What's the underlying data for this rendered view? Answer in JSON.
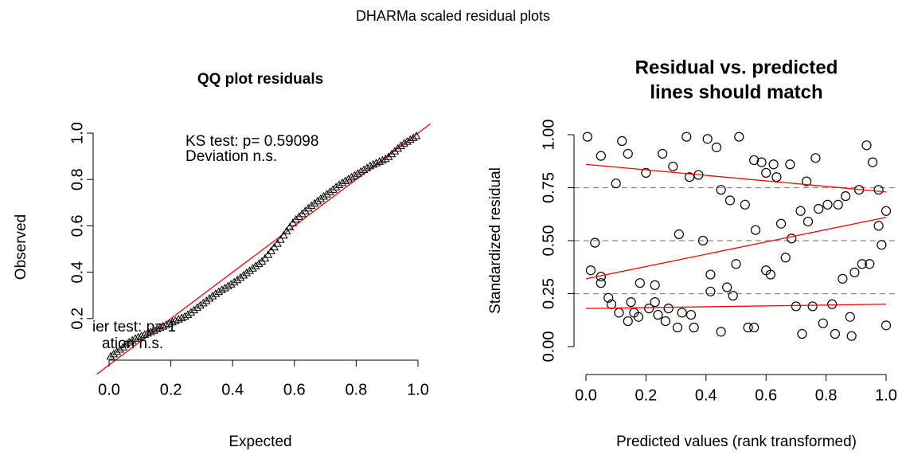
{
  "title": "DHARMa scaled residual plots",
  "chart_data": [
    {
      "type": "qq",
      "title": "QQ plot residuals",
      "x_label": "Expected",
      "y_label": "Observed",
      "marker": "triangle",
      "color": "#000000",
      "x": [
        0.005,
        0.015,
        0.025,
        0.035,
        0.045,
        0.055,
        0.065,
        0.075,
        0.085,
        0.095,
        0.105,
        0.115,
        0.125,
        0.135,
        0.145,
        0.155,
        0.165,
        0.175,
        0.185,
        0.195,
        0.205,
        0.215,
        0.225,
        0.235,
        0.245,
        0.255,
        0.265,
        0.275,
        0.285,
        0.295,
        0.305,
        0.315,
        0.325,
        0.335,
        0.345,
        0.355,
        0.365,
        0.375,
        0.385,
        0.395,
        0.405,
        0.415,
        0.425,
        0.435,
        0.445,
        0.455,
        0.465,
        0.475,
        0.485,
        0.495,
        0.505,
        0.515,
        0.525,
        0.535,
        0.545,
        0.555,
        0.565,
        0.575,
        0.585,
        0.595,
        0.605,
        0.615,
        0.625,
        0.635,
        0.645,
        0.655,
        0.665,
        0.675,
        0.685,
        0.695,
        0.705,
        0.715,
        0.725,
        0.735,
        0.745,
        0.755,
        0.765,
        0.775,
        0.785,
        0.795,
        0.805,
        0.815,
        0.825,
        0.835,
        0.845,
        0.855,
        0.865,
        0.875,
        0.885,
        0.895,
        0.905,
        0.915,
        0.925,
        0.935,
        0.945,
        0.955,
        0.965,
        0.975,
        0.985,
        0.995
      ],
      "values": [
        0.035,
        0.045,
        0.055,
        0.065,
        0.075,
        0.088,
        0.096,
        0.104,
        0.112,
        0.118,
        0.123,
        0.129,
        0.135,
        0.141,
        0.147,
        0.153,
        0.159,
        0.165,
        0.171,
        0.177,
        0.183,
        0.189,
        0.195,
        0.201,
        0.207,
        0.215,
        0.225,
        0.235,
        0.245,
        0.255,
        0.265,
        0.275,
        0.285,
        0.295,
        0.305,
        0.314,
        0.322,
        0.33,
        0.338,
        0.346,
        0.355,
        0.365,
        0.375,
        0.385,
        0.395,
        0.405,
        0.415,
        0.425,
        0.435,
        0.445,
        0.458,
        0.474,
        0.49,
        0.506,
        0.522,
        0.539,
        0.557,
        0.575,
        0.593,
        0.611,
        0.626,
        0.638,
        0.65,
        0.662,
        0.674,
        0.685,
        0.695,
        0.705,
        0.715,
        0.725,
        0.735,
        0.745,
        0.755,
        0.765,
        0.775,
        0.784,
        0.792,
        0.8,
        0.808,
        0.816,
        0.824,
        0.832,
        0.84,
        0.848,
        0.856,
        0.863,
        0.869,
        0.875,
        0.881,
        0.887,
        0.896,
        0.908,
        0.92,
        0.932,
        0.944,
        0.954,
        0.962,
        0.97,
        0.978,
        0.986
      ],
      "reference_line": {
        "intercept": 0,
        "slope": 1,
        "color": "#ff0000"
      },
      "xlim": [
        -0.04,
        1.04
      ],
      "ylim": [
        -0.04,
        1.04
      ],
      "xticks": [
        {
          "value": 0,
          "label": "0.0"
        },
        0.2,
        0.4,
        0.6,
        0.8,
        {
          "value": 1,
          "label": "1.0"
        }
      ],
      "yticks": [
        0.2,
        0.4,
        0.6,
        0.8,
        {
          "value": 1,
          "label": "1.0"
        }
      ],
      "annotations": [
        "KS test: p= 0.59098",
        "Deviation  n.s.",
        "ier test: p= 1",
        "ation  n.s."
      ]
    },
    {
      "type": "scatter",
      "title": [
        "Residual vs. predicted",
        "lines should match"
      ],
      "x_label": "Predicted values (rank transformed)",
      "y_label": "Standardized residual",
      "marker": "circle",
      "color": "#000000",
      "x": [
        0.005,
        0.03,
        0.016,
        0.05,
        0.05,
        0.05,
        0.075,
        0.085,
        0.1,
        0.11,
        0.12,
        0.14,
        0.14,
        0.15,
        0.16,
        0.175,
        0.18,
        0.2,
        0.21,
        0.23,
        0.23,
        0.24,
        0.255,
        0.265,
        0.275,
        0.29,
        0.305,
        0.31,
        0.32,
        0.335,
        0.345,
        0.35,
        0.36,
        0.375,
        0.39,
        0.405,
        0.415,
        0.415,
        0.435,
        0.45,
        0.45,
        0.47,
        0.48,
        0.49,
        0.5,
        0.51,
        0.53,
        0.54,
        0.56,
        0.56,
        0.565,
        0.585,
        0.6,
        0.6,
        0.615,
        0.625,
        0.635,
        0.65,
        0.665,
        0.68,
        0.685,
        0.7,
        0.715,
        0.72,
        0.735,
        0.74,
        0.755,
        0.765,
        0.775,
        0.79,
        0.805,
        0.82,
        0.83,
        0.84,
        0.855,
        0.865,
        0.88,
        0.885,
        0.895,
        0.91,
        0.92,
        0.935,
        0.945,
        0.955,
        0.975,
        0.975,
        0.985,
        1.0,
        1.0
      ],
      "values": [
        0.99,
        0.49,
        0.36,
        0.9,
        0.33,
        0.3,
        0.23,
        0.2,
        0.77,
        0.16,
        0.97,
        0.12,
        0.91,
        0.21,
        0.16,
        0.14,
        0.3,
        0.82,
        0.18,
        0.29,
        0.21,
        0.15,
        0.91,
        0.12,
        0.18,
        0.85,
        0.09,
        0.53,
        0.16,
        0.99,
        0.8,
        0.15,
        0.09,
        0.81,
        0.5,
        0.98,
        0.26,
        0.34,
        0.94,
        0.74,
        0.07,
        0.28,
        0.69,
        0.24,
        0.39,
        0.99,
        0.67,
        0.09,
        0.88,
        0.09,
        0.55,
        0.87,
        0.82,
        0.36,
        0.34,
        0.86,
        0.8,
        0.58,
        0.42,
        0.86,
        0.51,
        0.19,
        0.64,
        0.06,
        0.78,
        0.59,
        0.19,
        0.89,
        0.65,
        0.11,
        0.67,
        0.2,
        0.06,
        0.67,
        0.32,
        0.71,
        0.14,
        0.05,
        0.35,
        0.74,
        0.39,
        0.95,
        0.39,
        0.87,
        0.74,
        0.57,
        0.48,
        0.1,
        0.64
      ],
      "quantile_lines": [
        {
          "quantile": 0.25,
          "fit_x": [
            0,
            1
          ],
          "values": [
            0.18,
            0.2
          ],
          "color": "#ff0000"
        },
        {
          "quantile": 0.5,
          "fit_x": [
            0,
            1
          ],
          "values": [
            0.32,
            0.61
          ],
          "color": "#ff0000"
        },
        {
          "quantile": 0.75,
          "fit_x": [
            0,
            1
          ],
          "values": [
            0.86,
            0.73
          ],
          "color": "#ff0000"
        }
      ],
      "dashed_color": "#888888",
      "xlim": [
        -0.04,
        1.04
      ],
      "ylim": [
        -0.04,
        1.04
      ],
      "xticks": [
        {
          "value": 0,
          "label": "0.0"
        },
        0.2,
        0.4,
        0.6,
        0.8,
        {
          "value": 1,
          "label": "1.0"
        }
      ],
      "yticks": [
        {
          "value": 0,
          "label": "0.00"
        },
        0.25,
        {
          "value": 0.5,
          "label": "0.50"
        },
        0.75,
        {
          "value": 1,
          "label": "1.00"
        }
      ]
    }
  ]
}
